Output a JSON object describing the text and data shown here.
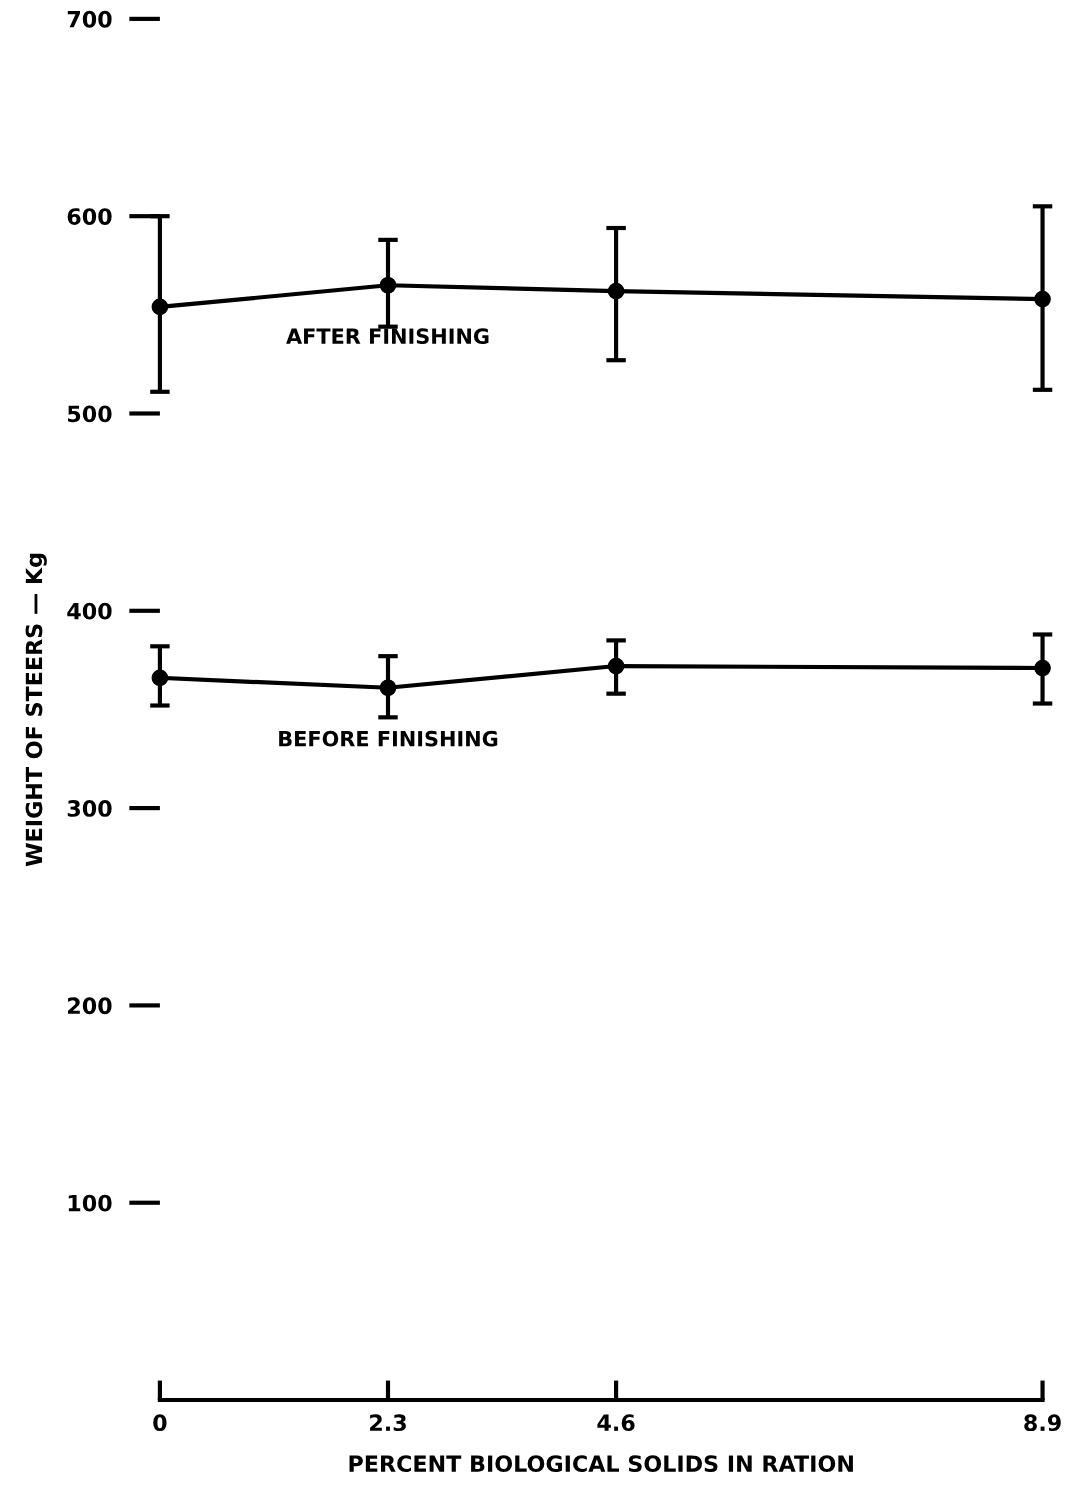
{
  "chart_data": {
    "type": "line",
    "xlabel": "PERCENT BIOLOGICAL SOLIDS IN RATION",
    "ylabel": "WEIGHT OF STEERS — Kg",
    "x": [
      0,
      2.3,
      4.6,
      8.9
    ],
    "xlim": [
      0,
      8.9
    ],
    "xticks": [
      0,
      2.3,
      4.6,
      8.9
    ],
    "ylim": [
      0,
      700
    ],
    "yticks": [
      100,
      200,
      300,
      400,
      500,
      600,
      700
    ],
    "marker": "circle",
    "line_style": "solid",
    "grid": false,
    "legend": false,
    "series": [
      {
        "name": "AFTER FINISHING",
        "color": "#000000",
        "values": [
          554,
          565,
          562,
          558
        ],
        "errors": [
          [
            511,
            600
          ],
          [
            544,
            588
          ],
          [
            527,
            594
          ],
          [
            512,
            605
          ]
        ]
      },
      {
        "name": "BEFORE FINISHING",
        "color": "#000000",
        "values": [
          366,
          361,
          372,
          371
        ],
        "errors": [
          [
            352,
            382
          ],
          [
            346,
            377
          ],
          [
            358,
            385
          ],
          [
            353,
            388
          ]
        ]
      }
    ]
  }
}
